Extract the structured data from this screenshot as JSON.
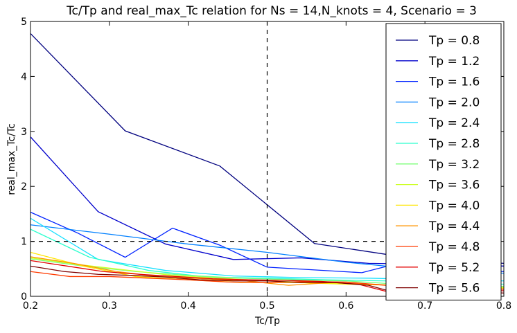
{
  "chart_data": {
    "type": "line",
    "title": "Tc/Tp and real_max_Tc relation for Ns = 14,N_knots = 4, Scenario = 3",
    "xlabel": "Tc/Tp",
    "ylabel": "real_max_Tc/Tc",
    "xlim": [
      0.2,
      0.8
    ],
    "ylim": [
      0,
      5
    ],
    "xticks": [
      0.2,
      0.3,
      0.4,
      0.5,
      0.6,
      0.7,
      0.8
    ],
    "xtick_labels": [
      "0.2",
      "0.3",
      "0.4",
      "0.5",
      "0.6",
      "0.7",
      "0.8"
    ],
    "yticks": [
      0,
      1,
      2,
      3,
      4,
      5
    ],
    "ytick_labels": [
      "0",
      "1",
      "2",
      "3",
      "4",
      "5"
    ],
    "grid": false,
    "legend_position": "right",
    "reference_lines": [
      {
        "orientation": "vertical",
        "value": 0.5,
        "style": "dashed"
      },
      {
        "orientation": "horizontal",
        "value": 1.0,
        "style": "dashed"
      }
    ],
    "series": [
      {
        "name": "Tp = 0.8",
        "color": "#00007f",
        "x": [
          0.2,
          0.32,
          0.44,
          0.56,
          0.68,
          0.8
        ],
        "y": [
          4.78,
          3.01,
          2.37,
          0.96,
          0.7,
          0.6
        ]
      },
      {
        "name": "Tp = 1.2",
        "color": "#0000cc",
        "x": [
          0.2,
          0.2857,
          0.3714,
          0.4571,
          0.5429,
          0.6286,
          0.7143,
          0.8
        ],
        "y": [
          2.9,
          1.54,
          0.95,
          0.67,
          0.7,
          0.6,
          0.58,
          0.55
        ]
      },
      {
        "name": "Tp = 1.6",
        "color": "#0022ff",
        "x": [
          0.2,
          0.26,
          0.32,
          0.38,
          0.44,
          0.5,
          0.56,
          0.62,
          0.68,
          0.74,
          0.8
        ],
        "y": [
          1.53,
          1.15,
          0.71,
          1.24,
          0.93,
          0.53,
          0.48,
          0.43,
          0.65,
          0.5,
          0.45
        ]
      },
      {
        "name": "Tp = 2.0",
        "color": "#0080ff",
        "x": [
          0.2,
          0.3,
          0.4,
          0.5,
          0.6,
          0.7,
          0.8
        ],
        "y": [
          1.3,
          1.13,
          0.95,
          0.8,
          0.62,
          0.48,
          0.42
        ]
      },
      {
        "name": "Tp = 2.4",
        "color": "#15e0ff",
        "x": [
          0.2,
          0.2857,
          0.3714,
          0.4571,
          0.5429,
          0.6286,
          0.7143,
          0.8
        ],
        "y": [
          1.42,
          0.67,
          0.47,
          0.37,
          0.34,
          0.33,
          0.3,
          0.28
        ]
      },
      {
        "name": "Tp = 2.8",
        "color": "#29ffce",
        "x": [
          0.2,
          0.275,
          0.35,
          0.425,
          0.5,
          0.575,
          0.65,
          0.725,
          0.8
        ],
        "y": [
          1.22,
          0.71,
          0.47,
          0.35,
          0.33,
          0.3,
          0.28,
          0.25,
          0.22
        ]
      },
      {
        "name": "Tp = 3.2",
        "color": "#7dff7a",
        "x": [
          0.2,
          0.2667,
          0.3333,
          0.4,
          0.4667,
          0.5333,
          0.6,
          0.6667,
          0.7333,
          0.8
        ],
        "y": [
          0.68,
          0.55,
          0.45,
          0.38,
          0.33,
          0.3,
          0.28,
          0.22,
          0.2,
          0.18
        ]
      },
      {
        "name": "Tp = 3.6",
        "color": "#ceff29",
        "x": [
          0.2,
          0.26,
          0.32,
          0.38,
          0.44,
          0.5,
          0.56,
          0.62,
          0.68,
          0.74,
          0.8
        ],
        "y": [
          0.7,
          0.58,
          0.48,
          0.38,
          0.33,
          0.28,
          0.25,
          0.22,
          0.2,
          0.18,
          0.16
        ]
      },
      {
        "name": "Tp = 4.0",
        "color": "#ffe600",
        "x": [
          0.2,
          0.2667,
          0.3333,
          0.4,
          0.4667,
          0.5333,
          0.6,
          0.6667,
          0.7333,
          0.8
        ],
        "y": [
          0.8,
          0.55,
          0.36,
          0.3,
          0.25,
          0.25,
          0.22,
          0.2,
          0.17,
          0.15
        ]
      },
      {
        "name": "Tp = 4.4",
        "color": "#ff9400",
        "x": [
          0.2,
          0.2545,
          0.3091,
          0.3636,
          0.4182,
          0.4727,
          0.5273,
          0.5818,
          0.6364,
          0.6909,
          0.7455,
          0.8
        ],
        "y": [
          0.72,
          0.6,
          0.45,
          0.36,
          0.32,
          0.28,
          0.2,
          0.25,
          0.22,
          0.15,
          0.14,
          0.13
        ]
      },
      {
        "name": "Tp = 4.8",
        "color": "#ff3b00",
        "x": [
          0.2,
          0.25,
          0.3,
          0.35,
          0.4,
          0.45,
          0.5,
          0.55,
          0.6,
          0.65,
          0.7,
          0.75,
          0.8
        ],
        "y": [
          0.45,
          0.36,
          0.36,
          0.33,
          0.3,
          0.26,
          0.25,
          0.27,
          0.26,
          0.2,
          0.17,
          0.15,
          0.13
        ]
      },
      {
        "name": "Tp = 5.2",
        "color": "#e30000",
        "x": [
          0.2,
          0.2462,
          0.2923,
          0.3385,
          0.3846,
          0.4308,
          0.4769,
          0.5231,
          0.5692,
          0.6154,
          0.6615,
          0.7077,
          0.7538,
          0.8
        ],
        "y": [
          0.65,
          0.55,
          0.45,
          0.4,
          0.36,
          0.32,
          0.3,
          0.29,
          0.27,
          0.22,
          0.05,
          0.07,
          0.12,
          0.1
        ]
      },
      {
        "name": "Tp = 5.6",
        "color": "#7f0000",
        "x": [
          0.2,
          0.2429,
          0.2857,
          0.3286,
          0.3714,
          0.4143,
          0.4571,
          0.5,
          0.5429,
          0.5857,
          0.6286,
          0.6714,
          0.7143,
          0.7571,
          0.8
        ],
        "y": [
          0.55,
          0.45,
          0.4,
          0.38,
          0.35,
          0.3,
          0.28,
          0.28,
          0.25,
          0.25,
          0.2,
          0.03,
          0.05,
          0.08,
          0.06
        ]
      }
    ]
  }
}
